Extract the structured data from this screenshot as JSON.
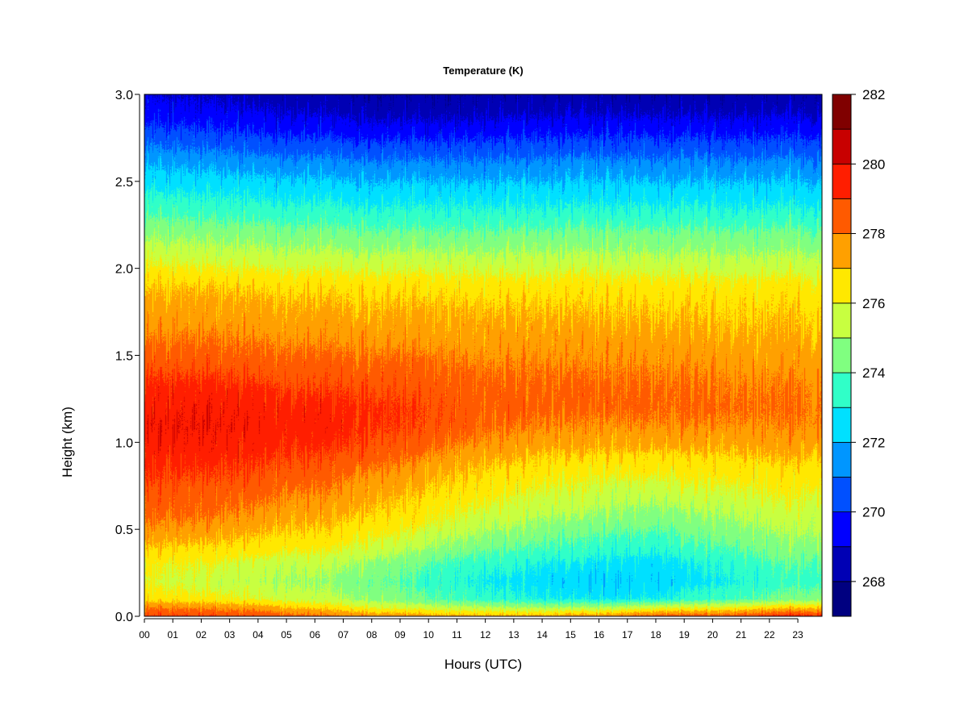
{
  "chart_data": {
    "type": "heatmap",
    "title": "Temperature (K)",
    "xlabel": "Hours (UTC)",
    "ylabel": "Height (km)",
    "x_ticks": [
      "00",
      "01",
      "02",
      "03",
      "04",
      "05",
      "06",
      "07",
      "08",
      "09",
      "10",
      "11",
      "12",
      "13",
      "14",
      "15",
      "16",
      "17",
      "18",
      "19",
      "20",
      "21",
      "22",
      "23"
    ],
    "y_ticks": [
      "0.0",
      "0.5",
      "1.0",
      "1.5",
      "2.0",
      "2.5",
      "3.0"
    ],
    "xlim": [
      0,
      23.85
    ],
    "ylim": [
      0,
      3.0
    ],
    "colorbar": {
      "min": 267,
      "max": 282,
      "step": 1,
      "tick_labels": [
        "268",
        "270",
        "272",
        "274",
        "276",
        "278",
        "280",
        "282"
      ],
      "colors": [
        "#000080",
        "#0000B4",
        "#0000FF",
        "#0050FF",
        "#0096FF",
        "#00E0FF",
        "#30FFC8",
        "#80FF80",
        "#C8FF40",
        "#FFE800",
        "#FFA000",
        "#FF5A00",
        "#FF1E00",
        "#C80000",
        "#800000"
      ]
    },
    "profile_heights_km": [
      0.0,
      0.05,
      0.1,
      0.2,
      0.3,
      0.4,
      0.5,
      0.6,
      0.7,
      0.8,
      0.9,
      1.0,
      1.1,
      1.2,
      1.3,
      1.4,
      1.5,
      1.6,
      1.7,
      1.8,
      1.9,
      2.0,
      2.1,
      2.2,
      2.3,
      2.4,
      2.5,
      2.6,
      2.7,
      2.8,
      2.9,
      3.0
    ],
    "profiles": [
      {
        "hour": 0,
        "temperature_K": [
          279.0,
          278.0,
          276.5,
          276.0,
          276.2,
          277.0,
          277.8,
          278.3,
          278.6,
          279.0,
          279.3,
          279.6,
          279.8,
          279.6,
          279.3,
          278.9,
          278.4,
          278.0,
          277.6,
          277.3,
          276.9,
          276.2,
          275.5,
          274.8,
          274.0,
          273.3,
          272.6,
          271.9,
          271.0,
          270.2,
          269.5,
          269.0
        ]
      },
      {
        "hour": 2,
        "temperature_K": [
          279.0,
          277.8,
          276.3,
          275.5,
          276.0,
          276.8,
          277.6,
          278.2,
          278.5,
          278.9,
          279.3,
          279.7,
          279.9,
          279.7,
          279.4,
          278.9,
          278.4,
          278.0,
          277.6,
          277.3,
          276.9,
          276.1,
          275.3,
          274.6,
          273.8,
          273.1,
          272.4,
          271.7,
          270.8,
          270.0,
          269.3,
          268.8
        ]
      },
      {
        "hour": 4,
        "temperature_K": [
          278.8,
          277.5,
          276.0,
          275.2,
          275.6,
          276.6,
          277.2,
          277.8,
          278.3,
          278.8,
          279.1,
          279.4,
          279.6,
          279.5,
          279.2,
          278.8,
          278.3,
          277.9,
          277.5,
          277.2,
          276.8,
          276.0,
          275.2,
          274.5,
          273.7,
          273.0,
          272.3,
          271.5,
          270.6,
          269.8,
          269.1,
          268.6
        ]
      },
      {
        "hour": 6,
        "temperature_K": [
          278.3,
          276.8,
          275.4,
          274.9,
          275.4,
          276.3,
          276.9,
          277.4,
          277.9,
          278.4,
          278.9,
          279.3,
          279.5,
          279.4,
          279.0,
          278.6,
          278.2,
          277.8,
          277.4,
          277.1,
          276.7,
          275.9,
          275.1,
          274.4,
          273.6,
          272.9,
          272.2,
          271.4,
          270.5,
          269.6,
          268.9,
          268.4
        ]
      },
      {
        "hour": 8,
        "temperature_K": [
          277.8,
          276.0,
          274.8,
          274.3,
          274.8,
          275.8,
          276.5,
          277.0,
          277.4,
          277.8,
          278.4,
          278.9,
          279.2,
          279.2,
          278.9,
          278.5,
          278.1,
          277.7,
          277.3,
          277.0,
          276.6,
          275.8,
          275.0,
          274.2,
          273.4,
          272.7,
          272.0,
          271.2,
          270.3,
          269.4,
          268.6,
          268.1
        ]
      },
      {
        "hour": 10,
        "temperature_K": [
          277.5,
          275.5,
          274.0,
          273.6,
          274.0,
          275.0,
          275.8,
          276.4,
          276.8,
          277.2,
          277.8,
          278.4,
          278.8,
          278.9,
          278.7,
          278.4,
          278.0,
          277.6,
          277.3,
          277.0,
          276.6,
          275.8,
          275.0,
          274.2,
          273.4,
          272.7,
          272.0,
          271.2,
          270.3,
          269.4,
          268.6,
          268.1
        ]
      },
      {
        "hour": 12,
        "temperature_K": [
          277.3,
          275.2,
          273.4,
          272.9,
          273.4,
          274.3,
          275.1,
          275.8,
          276.3,
          276.7,
          277.2,
          277.8,
          278.2,
          278.4,
          278.3,
          278.1,
          277.8,
          277.5,
          277.2,
          276.9,
          276.5,
          275.7,
          274.9,
          274.2,
          273.4,
          272.7,
          272.0,
          271.2,
          270.3,
          269.5,
          268.7,
          268.2
        ]
      },
      {
        "hour": 14,
        "temperature_K": [
          277.4,
          275.0,
          273.0,
          272.5,
          273.0,
          273.9,
          274.6,
          275.3,
          275.8,
          276.3,
          276.8,
          277.5,
          278.0,
          278.3,
          278.3,
          278.1,
          277.8,
          277.5,
          277.2,
          276.9,
          276.5,
          275.7,
          275.0,
          274.2,
          273.4,
          272.7,
          272.0,
          271.3,
          270.4,
          269.6,
          268.8,
          268.3
        ]
      },
      {
        "hour": 16,
        "temperature_K": [
          277.6,
          275.0,
          272.8,
          272.1,
          272.6,
          273.5,
          274.2,
          274.9,
          275.5,
          276.0,
          276.6,
          277.3,
          277.8,
          278.2,
          278.2,
          278.0,
          277.7,
          277.4,
          277.1,
          276.8,
          276.4,
          275.7,
          274.9,
          274.2,
          273.4,
          272.7,
          272.0,
          271.3,
          270.4,
          269.6,
          268.8,
          268.3
        ]
      },
      {
        "hour": 18,
        "temperature_K": [
          278.6,
          275.8,
          273.0,
          272.2,
          272.5,
          273.4,
          274.0,
          274.7,
          275.4,
          276.0,
          276.6,
          277.4,
          277.9,
          278.2,
          278.2,
          278.0,
          277.7,
          277.4,
          277.1,
          276.8,
          276.4,
          275.7,
          274.9,
          274.2,
          273.4,
          272.7,
          272.0,
          271.3,
          270.4,
          269.6,
          268.8,
          268.3
        ]
      },
      {
        "hour": 20,
        "temperature_K": [
          278.6,
          276.0,
          273.6,
          272.8,
          273.2,
          273.9,
          274.5,
          275.1,
          275.7,
          276.2,
          276.7,
          277.4,
          277.9,
          278.2,
          278.1,
          277.9,
          277.6,
          277.3,
          277.0,
          276.8,
          276.4,
          275.6,
          274.9,
          274.2,
          273.4,
          272.7,
          272.0,
          271.3,
          270.4,
          269.6,
          268.8,
          268.3
        ]
      },
      {
        "hour": 22,
        "temperature_K": [
          279.2,
          276.6,
          274.2,
          273.4,
          273.8,
          274.5,
          275.0,
          275.5,
          276.0,
          276.4,
          276.9,
          277.5,
          277.9,
          278.1,
          278.0,
          277.8,
          277.5,
          277.2,
          277.0,
          276.8,
          276.4,
          275.6,
          274.9,
          274.2,
          273.4,
          272.7,
          272.0,
          271.3,
          270.4,
          269.6,
          268.8,
          268.3
        ]
      },
      {
        "hour": 23.85,
        "temperature_K": [
          279.6,
          277.0,
          274.6,
          273.8,
          274.1,
          274.8,
          275.3,
          275.7,
          276.1,
          276.5,
          277.0,
          277.6,
          278.0,
          278.1,
          278.0,
          277.8,
          277.5,
          277.2,
          277.0,
          276.8,
          276.4,
          275.6,
          274.9,
          274.2,
          273.4,
          272.7,
          272.0,
          271.3,
          270.4,
          269.6,
          268.8,
          268.3
        ]
      }
    ]
  }
}
